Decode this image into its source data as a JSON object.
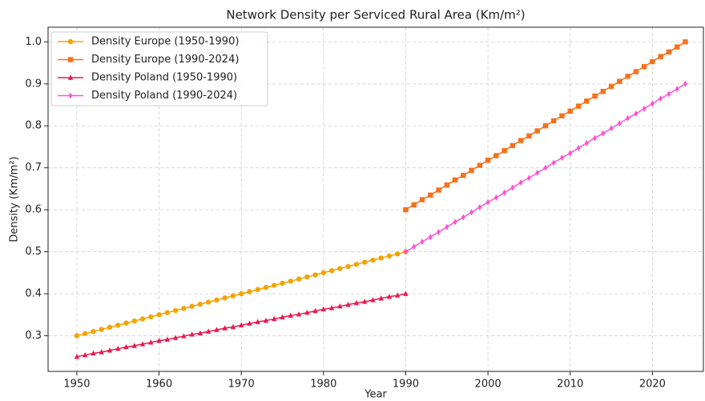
{
  "chart_data": {
    "type": "line",
    "title": "Network Density per Serviced Rural Area (Km/m²)",
    "xlabel": "Year",
    "ylabel": "Density (Km/m²)",
    "xlim": [
      1946.5,
      2026.2
    ],
    "xticks": [
      1950,
      1960,
      1970,
      1980,
      1990,
      2000,
      2010,
      2020
    ],
    "ylim": [
      0.215,
      1.035
    ],
    "yticks": [
      0.3,
      0.4,
      0.5,
      0.6,
      0.7,
      0.8,
      0.9,
      {
        "value": 1,
        "label": "1.0"
      }
    ],
    "grid": true,
    "legend": "upper left",
    "series": [
      {
        "name": "Density Europe (1950-1990)",
        "color": "#f5a300",
        "marker": "circle",
        "x": [
          1950,
          1951,
          1952,
          1953,
          1954,
          1955,
          1956,
          1957,
          1958,
          1959,
          1960,
          1961,
          1962,
          1963,
          1964,
          1965,
          1966,
          1967,
          1968,
          1969,
          1970,
          1971,
          1972,
          1973,
          1974,
          1975,
          1976,
          1977,
          1978,
          1979,
          1980,
          1981,
          1982,
          1983,
          1984,
          1985,
          1986,
          1987,
          1988,
          1989,
          1990
        ],
        "values": [
          0.3,
          0.305,
          0.31,
          0.315,
          0.32,
          0.325,
          0.33,
          0.335,
          0.34,
          0.345,
          0.35,
          0.355,
          0.36,
          0.365,
          0.37,
          0.375,
          0.38,
          0.385,
          0.39,
          0.395,
          0.4,
          0.405,
          0.41,
          0.415,
          0.42,
          0.425,
          0.43,
          0.435,
          0.44,
          0.445,
          0.45,
          0.455,
          0.46,
          0.465,
          0.47,
          0.475,
          0.48,
          0.485,
          0.49,
          0.495,
          0.5
        ]
      },
      {
        "name": "Density Europe (1990-2024)",
        "color": "#f7701a",
        "marker": "square",
        "x": [
          1990,
          1991,
          1992,
          1993,
          1994,
          1995,
          1996,
          1997,
          1998,
          1999,
          2000,
          2001,
          2002,
          2003,
          2004,
          2005,
          2006,
          2007,
          2008,
          2009,
          2010,
          2011,
          2012,
          2013,
          2014,
          2015,
          2016,
          2017,
          2018,
          2019,
          2020,
          2021,
          2022,
          2023,
          2024
        ],
        "values": [
          0.6,
          0.612,
          0.624,
          0.635,
          0.647,
          0.659,
          0.671,
          0.682,
          0.694,
          0.706,
          0.718,
          0.729,
          0.741,
          0.753,
          0.765,
          0.776,
          0.788,
          0.8,
          0.812,
          0.824,
          0.835,
          0.847,
          0.859,
          0.871,
          0.882,
          0.894,
          0.906,
          0.918,
          0.929,
          0.941,
          0.953,
          0.965,
          0.976,
          0.988,
          1.0
        ]
      },
      {
        "name": "Density Poland (1950-1990)",
        "color": "#e8194f",
        "marker": "triangle",
        "x": [
          1950,
          1951,
          1952,
          1953,
          1954,
          1955,
          1956,
          1957,
          1958,
          1959,
          1960,
          1961,
          1962,
          1963,
          1964,
          1965,
          1966,
          1967,
          1968,
          1969,
          1970,
          1971,
          1972,
          1973,
          1974,
          1975,
          1976,
          1977,
          1978,
          1979,
          1980,
          1981,
          1982,
          1983,
          1984,
          1985,
          1986,
          1987,
          1988,
          1989,
          1990
        ],
        "values": [
          0.25,
          0.254,
          0.258,
          0.261,
          0.265,
          0.269,
          0.273,
          0.276,
          0.28,
          0.284,
          0.288,
          0.291,
          0.295,
          0.299,
          0.303,
          0.306,
          0.31,
          0.314,
          0.318,
          0.321,
          0.325,
          0.329,
          0.333,
          0.336,
          0.34,
          0.344,
          0.348,
          0.351,
          0.355,
          0.359,
          0.363,
          0.366,
          0.37,
          0.374,
          0.378,
          0.381,
          0.385,
          0.389,
          0.393,
          0.396,
          0.4
        ]
      },
      {
        "name": "Density Poland (1990-2024)",
        "color": "#ff52d4",
        "marker": "diamond",
        "x": [
          1990,
          1991,
          1992,
          1993,
          1994,
          1995,
          1996,
          1997,
          1998,
          1999,
          2000,
          2001,
          2002,
          2003,
          2004,
          2005,
          2006,
          2007,
          2008,
          2009,
          2010,
          2011,
          2012,
          2013,
          2014,
          2015,
          2016,
          2017,
          2018,
          2019,
          2020,
          2021,
          2022,
          2023,
          2024
        ],
        "values": [
          0.5,
          0.512,
          0.524,
          0.535,
          0.547,
          0.559,
          0.571,
          0.582,
          0.594,
          0.606,
          0.618,
          0.629,
          0.641,
          0.653,
          0.665,
          0.676,
          0.688,
          0.7,
          0.712,
          0.724,
          0.735,
          0.747,
          0.759,
          0.771,
          0.782,
          0.794,
          0.806,
          0.818,
          0.829,
          0.841,
          0.853,
          0.865,
          0.876,
          0.888,
          0.9
        ]
      }
    ]
  }
}
